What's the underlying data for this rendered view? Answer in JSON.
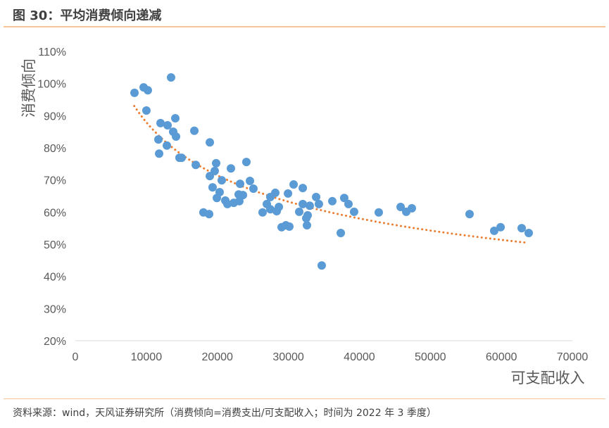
{
  "title": "图 30：平均消费倾向递减",
  "footer": "资料来源：wind，天风证券研究所（消费倾向=消费支出/可支配收入；时间为 2022 年 3 季度）",
  "chart_data": {
    "type": "scatter",
    "title": "图 30：平均消费倾向递减",
    "xlabel": "可支配收入",
    "ylabel": "消费倾向",
    "xlim": [
      0,
      70000
    ],
    "ylim": [
      20,
      110
    ],
    "xticks": [
      0,
      10000,
      20000,
      30000,
      40000,
      50000,
      60000,
      70000
    ],
    "yticks": [
      20,
      30,
      40,
      50,
      60,
      70,
      80,
      90,
      100,
      110
    ],
    "ytick_suffix": "%",
    "grid": false,
    "colors": {
      "points": "#5b9bd5",
      "trend": "#ed7d31"
    },
    "trendline": {
      "type": "power",
      "a_at_x0": 93,
      "x0": 8300,
      "exponent": -0.3,
      "x_range": [
        8300,
        63800
      ]
    },
    "points": [
      [
        8330,
        97.1
      ],
      [
        9620,
        98.8
      ],
      [
        10210,
        97.9
      ],
      [
        10010,
        91.6
      ],
      [
        13480,
        101.9
      ],
      [
        12990,
        87
      ],
      [
        12000,
        87.7
      ],
      [
        11700,
        82.6
      ],
      [
        11800,
        78.2
      ],
      [
        12890,
        80.7
      ],
      [
        14080,
        89.2
      ],
      [
        13780,
        85
      ],
      [
        14180,
        83.5
      ],
      [
        14670,
        76.9
      ],
      [
        14970,
        76.9
      ],
      [
        16760,
        85.3
      ],
      [
        16960,
        74.7
      ],
      [
        18940,
        81.7
      ],
      [
        18040,
        59.9
      ],
      [
        18840,
        59.4
      ],
      [
        19830,
        75.2
      ],
      [
        19630,
        72.8
      ],
      [
        18940,
        71.2
      ],
      [
        19330,
        67.7
      ],
      [
        20320,
        66.2
      ],
      [
        19930,
        64.4
      ],
      [
        20620,
        69.9
      ],
      [
        21120,
        63.6
      ],
      [
        21420,
        62.5
      ],
      [
        21910,
        73.6
      ],
      [
        22310,
        62.9
      ],
      [
        23200,
        68.8
      ],
      [
        23000,
        65.5
      ],
      [
        23600,
        65.3
      ],
      [
        23100,
        63.4
      ],
      [
        24090,
        75.6
      ],
      [
        24590,
        69.7
      ],
      [
        25080,
        67.3
      ],
      [
        26370,
        59.9
      ],
      [
        26970,
        62.5
      ],
      [
        27460,
        64.7
      ],
      [
        27460,
        60.9
      ],
      [
        28160,
        66
      ],
      [
        28360,
        60.3
      ],
      [
        28660,
        61.6
      ],
      [
        29050,
        55.3
      ],
      [
        29650,
        55.9
      ],
      [
        30140,
        55.5
      ],
      [
        29950,
        65.8
      ],
      [
        30740,
        68.6
      ],
      [
        31530,
        60.1
      ],
      [
        32030,
        67.5
      ],
      [
        32030,
        62.5
      ],
      [
        32520,
        58.1
      ],
      [
        32620,
        55.9
      ],
      [
        32720,
        59
      ],
      [
        33010,
        62
      ],
      [
        33910,
        64.7
      ],
      [
        34300,
        62.5
      ],
      [
        34700,
        43.4
      ],
      [
        36190,
        63.4
      ],
      [
        37380,
        53.5
      ],
      [
        37870,
        64.4
      ],
      [
        38470,
        62.5
      ],
      [
        39260,
        60.1
      ],
      [
        42730,
        59.9
      ],
      [
        45810,
        61.6
      ],
      [
        46600,
        60.1
      ],
      [
        47390,
        61.2
      ],
      [
        55520,
        59.4
      ],
      [
        58990,
        54.2
      ],
      [
        59890,
        55.3
      ],
      [
        62860,
        55
      ],
      [
        63850,
        53.5
      ]
    ]
  }
}
